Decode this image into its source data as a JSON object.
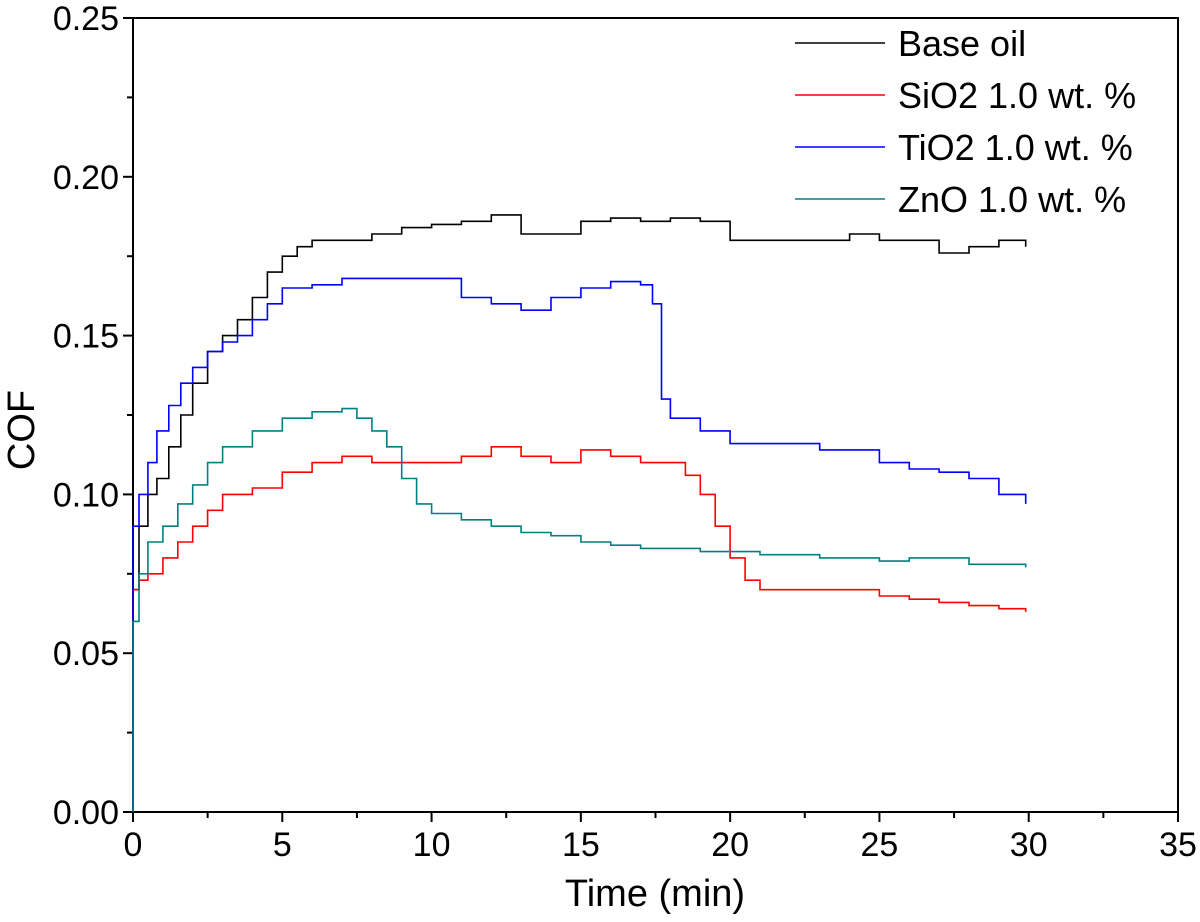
{
  "chart_data": {
    "type": "line",
    "xlabel": "Time (min)",
    "ylabel": "COF",
    "xlim": [
      0,
      35
    ],
    "ylim": [
      0,
      0.25
    ],
    "xticks": [
      0,
      5,
      10,
      15,
      20,
      25,
      30,
      35
    ],
    "yticks": [
      0.0,
      0.05,
      0.1,
      0.15,
      0.2,
      0.25
    ],
    "xtick_labels": [
      "0",
      "5",
      "10",
      "15",
      "20",
      "25",
      "30",
      "35"
    ],
    "ytick_labels": [
      "0.00",
      "0.05",
      "0.10",
      "0.15",
      "0.20",
      "0.25"
    ],
    "grid": false,
    "legend_position": "top-right",
    "series": [
      {
        "name": "Base oil",
        "color": "#000000",
        "x": [
          0,
          0.2,
          0.5,
          0.8,
          1.2,
          1.6,
          2.0,
          2.5,
          3.0,
          3.5,
          4.0,
          4.5,
          5.0,
          5.5,
          6.0,
          7.0,
          8.0,
          9.0,
          10.0,
          11.0,
          12.0,
          13.0,
          14.0,
          15.0,
          16.0,
          17.0,
          18.0,
          19.0,
          20.0,
          21.0,
          22.0,
          23.0,
          24.0,
          25.0,
          26.0,
          27.0,
          28.0,
          29.0,
          29.9
        ],
        "y": [
          0.07,
          0.09,
          0.1,
          0.105,
          0.115,
          0.125,
          0.135,
          0.145,
          0.15,
          0.155,
          0.162,
          0.17,
          0.175,
          0.178,
          0.18,
          0.18,
          0.182,
          0.184,
          0.185,
          0.186,
          0.188,
          0.182,
          0.182,
          0.186,
          0.187,
          0.186,
          0.187,
          0.186,
          0.18,
          0.18,
          0.18,
          0.18,
          0.182,
          0.18,
          0.18,
          0.176,
          0.178,
          0.18,
          0.178
        ]
      },
      {
        "name": "SiO2 1.0 wt. %",
        "color": "#ff0000",
        "x": [
          0,
          0.2,
          0.5,
          1.0,
          1.5,
          2.0,
          2.5,
          3.0,
          4.0,
          5.0,
          6.0,
          7.0,
          8.0,
          9.0,
          10.0,
          11.0,
          12.0,
          13.0,
          14.0,
          15.0,
          16.0,
          17.0,
          18.0,
          18.5,
          19.0,
          19.5,
          20.0,
          20.5,
          21.0,
          22.0,
          23.0,
          24.0,
          25.0,
          26.0,
          27.0,
          28.0,
          29.0,
          29.9
        ],
        "y": [
          0.07,
          0.073,
          0.075,
          0.08,
          0.085,
          0.09,
          0.095,
          0.1,
          0.102,
          0.107,
          0.11,
          0.112,
          0.11,
          0.11,
          0.11,
          0.112,
          0.115,
          0.112,
          0.11,
          0.114,
          0.112,
          0.11,
          0.11,
          0.106,
          0.1,
          0.09,
          0.08,
          0.073,
          0.07,
          0.07,
          0.07,
          0.07,
          0.068,
          0.067,
          0.066,
          0.065,
          0.064,
          0.063
        ]
      },
      {
        "name": "TiO2 1.0 wt. %",
        "color": "#0000ff",
        "x": [
          0,
          0.2,
          0.5,
          0.8,
          1.2,
          1.6,
          2.0,
          2.5,
          3.0,
          3.5,
          4.0,
          4.5,
          5.0,
          6.0,
          7.0,
          8.0,
          9.0,
          10.0,
          11.0,
          12.0,
          13.0,
          14.0,
          15.0,
          16.0,
          17.0,
          17.4,
          17.7,
          18.0,
          19.0,
          20.0,
          21.0,
          22.0,
          23.0,
          24.0,
          25.0,
          26.0,
          27.0,
          28.0,
          29.0,
          29.9
        ],
        "y": [
          0.09,
          0.1,
          0.11,
          0.12,
          0.128,
          0.135,
          0.14,
          0.145,
          0.148,
          0.15,
          0.155,
          0.16,
          0.165,
          0.166,
          0.168,
          0.168,
          0.168,
          0.168,
          0.162,
          0.16,
          0.158,
          0.162,
          0.165,
          0.167,
          0.166,
          0.16,
          0.13,
          0.124,
          0.12,
          0.116,
          0.116,
          0.116,
          0.114,
          0.114,
          0.11,
          0.108,
          0.107,
          0.105,
          0.1,
          0.097
        ]
      },
      {
        "name": "ZnO 1.0 wt. %",
        "color": "#008080",
        "x": [
          0,
          0.2,
          0.5,
          1.0,
          1.5,
          2.0,
          2.5,
          3.0,
          4.0,
          5.0,
          6.0,
          7.0,
          7.5,
          8.0,
          8.5,
          9.0,
          9.5,
          10.0,
          11.0,
          12.0,
          13.0,
          14.0,
          15.0,
          16.0,
          17.0,
          18.0,
          19.0,
          20.0,
          21.0,
          22.0,
          23.0,
          24.0,
          25.0,
          26.0,
          27.0,
          28.0,
          29.0,
          29.9
        ],
        "y": [
          0.06,
          0.075,
          0.085,
          0.09,
          0.097,
          0.103,
          0.11,
          0.115,
          0.12,
          0.124,
          0.126,
          0.127,
          0.124,
          0.12,
          0.115,
          0.105,
          0.097,
          0.094,
          0.092,
          0.09,
          0.088,
          0.087,
          0.085,
          0.084,
          0.083,
          0.083,
          0.082,
          0.082,
          0.081,
          0.081,
          0.08,
          0.08,
          0.079,
          0.08,
          0.08,
          0.078,
          0.078,
          0.077
        ]
      }
    ]
  }
}
